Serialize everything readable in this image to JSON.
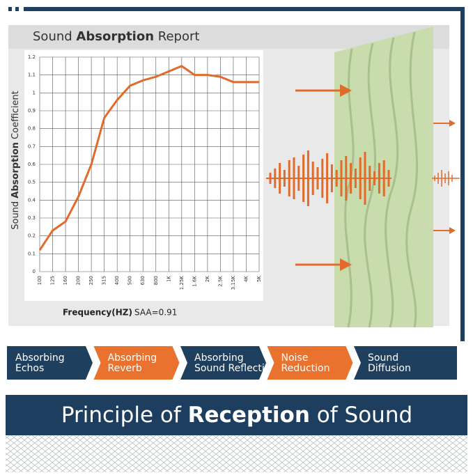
{
  "chart_data": {
    "type": "line",
    "title": [
      "Sound",
      "Absorption",
      "Report"
    ],
    "y_label": [
      "Sound",
      "Absorption",
      "Coefficient"
    ],
    "x_label": "Frequency(HZ)",
    "annotation": "SAA=0.91",
    "categories": [
      "100",
      "125",
      "160",
      "200",
      "250",
      "315",
      "400",
      "500",
      "630",
      "800",
      "1K",
      "1.25K",
      "1.6K",
      "2K",
      "2.5K",
      "3.15K",
      "4K",
      "5K"
    ],
    "values": [
      0.12,
      0.23,
      0.28,
      0.42,
      0.6,
      0.86,
      0.96,
      1.04,
      1.07,
      1.09,
      1.12,
      1.15,
      1.1,
      1.1,
      1.09,
      1.06,
      1.06,
      1.06
    ],
    "color": "#e06b2a",
    "ylim": [
      0,
      1.2
    ],
    "yticks": [
      0,
      0.1,
      0.2,
      0.3,
      0.4,
      0.5,
      0.6,
      0.7,
      0.8,
      0.9,
      1,
      1.1,
      1.2
    ],
    "grid": true
  },
  "steps": [
    [
      "Absorbing",
      "Echos"
    ],
    [
      "Absorbing",
      "Reverb"
    ],
    [
      "Absorbing",
      "Sound Reflection"
    ],
    [
      "Noise",
      "Reduction"
    ],
    [
      "Sound",
      "Diffusion"
    ]
  ],
  "step_colors": [
    "#1f3f5f",
    "#e8722e",
    "#1f3f5f",
    "#e8722e",
    "#1f3f5f"
  ],
  "banner": [
    "Principle of",
    "Reception",
    "of Sound"
  ]
}
